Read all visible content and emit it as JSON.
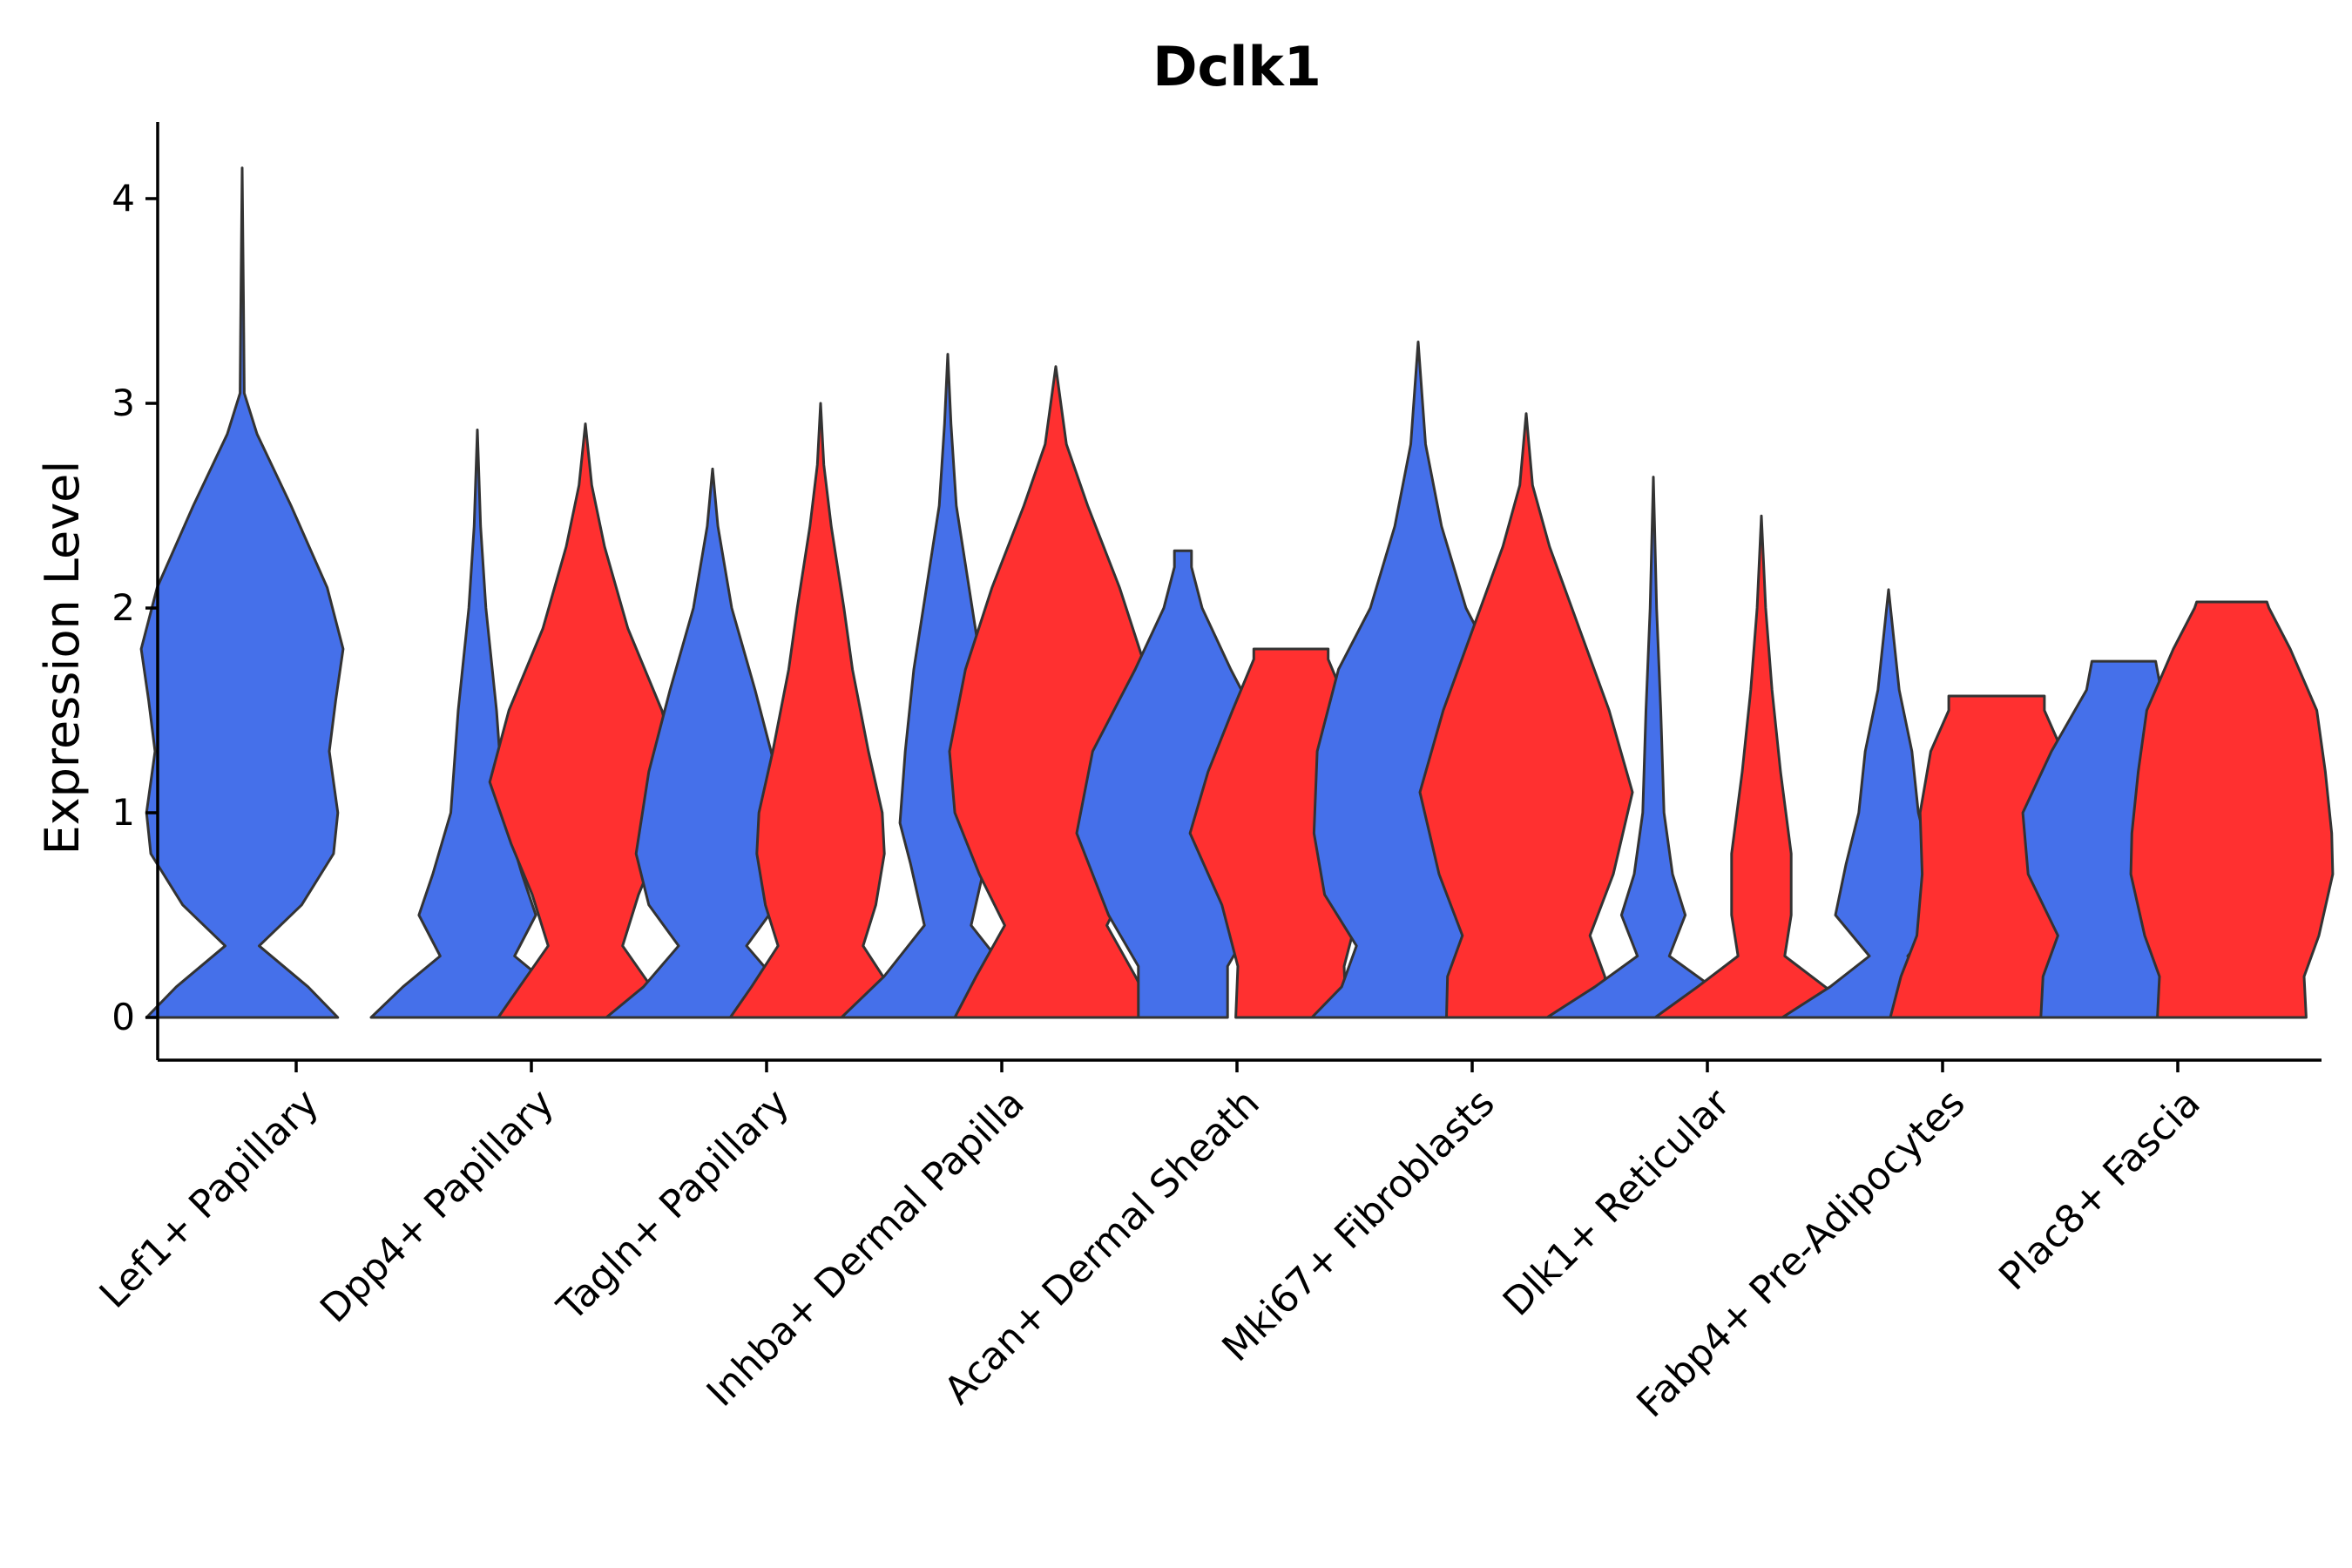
{
  "chart_data": {
    "type": "violin",
    "title": "Dclk1",
    "xlabel": "",
    "ylabel": "Expression Level",
    "ylim": [
      -0.2,
      4.35
    ],
    "yticks": [
      0,
      1,
      2,
      3,
      4
    ],
    "grid": false,
    "legend": "none",
    "categories": [
      "Lef1+ Papillary",
      "Dpp4+ Papillary",
      "Tagln+ Papillary",
      "Inhba+ Dermal Papilla",
      "Acan+ Dermal Sheath",
      "Mki67+ Fibroblasts",
      "Dlk1+ Reticular",
      "Fabp4+ Pre-Adipocytes",
      "Plac8+ Fascia"
    ],
    "groups": [
      {
        "color": "#4570EA"
      },
      {
        "color": "#FF3030"
      }
    ],
    "violins": [
      {
        "category": 0,
        "group": 0,
        "max": 4.15,
        "profile": [
          [
            0,
            0.9
          ],
          [
            0.15,
            0.62
          ],
          [
            0.35,
            0.16
          ],
          [
            0.55,
            0.56
          ],
          [
            0.8,
            0.86
          ],
          [
            1.0,
            0.9
          ],
          [
            1.3,
            0.82
          ],
          [
            1.55,
            0.88
          ],
          [
            1.8,
            0.95
          ],
          [
            2.1,
            0.8
          ],
          [
            2.5,
            0.46
          ],
          [
            2.85,
            0.14
          ],
          [
            3.05,
            0.02
          ],
          [
            3.5,
            0.012
          ],
          [
            4.15,
            0
          ]
        ]
      },
      {
        "category": 1,
        "group": 0,
        "max": 2.87,
        "profile": [
          [
            0,
            1.0
          ],
          [
            0.15,
            0.7
          ],
          [
            0.3,
            0.35
          ],
          [
            0.5,
            0.55
          ],
          [
            0.7,
            0.42
          ],
          [
            1.0,
            0.25
          ],
          [
            1.5,
            0.18
          ],
          [
            2.0,
            0.08
          ],
          [
            2.4,
            0.03
          ],
          [
            2.87,
            0
          ]
        ]
      },
      {
        "category": 1,
        "group": 1,
        "max": 2.9,
        "profile": [
          [
            0,
            0.82
          ],
          [
            0.15,
            0.62
          ],
          [
            0.35,
            0.35
          ],
          [
            0.6,
            0.5
          ],
          [
            0.85,
            0.7
          ],
          [
            1.15,
            0.9
          ],
          [
            1.5,
            0.72
          ],
          [
            1.9,
            0.4
          ],
          [
            2.3,
            0.18
          ],
          [
            2.6,
            0.06
          ],
          [
            2.9,
            0
          ]
        ]
      },
      {
        "category": 2,
        "group": 0,
        "max": 2.68,
        "profile": [
          [
            0,
            1.0
          ],
          [
            0.15,
            0.65
          ],
          [
            0.35,
            0.32
          ],
          [
            0.55,
            0.6
          ],
          [
            0.8,
            0.72
          ],
          [
            1.2,
            0.6
          ],
          [
            1.6,
            0.4
          ],
          [
            2.0,
            0.18
          ],
          [
            2.4,
            0.05
          ],
          [
            2.68,
            0
          ]
        ]
      },
      {
        "category": 2,
        "group": 1,
        "max": 3.0,
        "profile": [
          [
            0,
            0.85
          ],
          [
            0.15,
            0.65
          ],
          [
            0.35,
            0.4
          ],
          [
            0.55,
            0.52
          ],
          [
            0.8,
            0.6
          ],
          [
            1.0,
            0.58
          ],
          [
            1.3,
            0.45
          ],
          [
            1.7,
            0.3
          ],
          [
            2.0,
            0.22
          ],
          [
            2.4,
            0.1
          ],
          [
            2.7,
            0.03
          ],
          [
            3.0,
            0
          ]
        ]
      },
      {
        "category": 3,
        "group": 0,
        "max": 3.24,
        "profile": [
          [
            0,
            1.0
          ],
          [
            0.2,
            0.6
          ],
          [
            0.45,
            0.22
          ],
          [
            0.75,
            0.35
          ],
          [
            0.95,
            0.45
          ],
          [
            1.3,
            0.4
          ],
          [
            1.7,
            0.32
          ],
          [
            2.1,
            0.2
          ],
          [
            2.5,
            0.08
          ],
          [
            2.9,
            0.03
          ],
          [
            3.24,
            0
          ]
        ]
      },
      {
        "category": 3,
        "group": 1,
        "max": 3.18,
        "profile": [
          [
            0,
            0.95
          ],
          [
            0.2,
            0.75
          ],
          [
            0.45,
            0.48
          ],
          [
            0.7,
            0.72
          ],
          [
            1.0,
            0.95
          ],
          [
            1.3,
            1.0
          ],
          [
            1.7,
            0.85
          ],
          [
            2.1,
            0.6
          ],
          [
            2.5,
            0.3
          ],
          [
            2.8,
            0.1
          ],
          [
            3.18,
            0
          ]
        ]
      },
      {
        "category": 4,
        "group": 0,
        "max": 2.28,
        "profile": [
          [
            0,
            0.42
          ],
          [
            0.25,
            0.42
          ],
          [
            0.5,
            0.7
          ],
          [
            0.9,
            1.0
          ],
          [
            1.3,
            0.85
          ],
          [
            1.7,
            0.45
          ],
          [
            2.0,
            0.18
          ],
          [
            2.2,
            0.08
          ],
          [
            2.28,
            0.08
          ]
        ]
      },
      {
        "category": 4,
        "group": 1,
        "max": 1.8,
        "profile": [
          [
            0,
            0.52
          ],
          [
            0.25,
            0.5
          ],
          [
            0.55,
            0.65
          ],
          [
            0.9,
            0.95
          ],
          [
            1.2,
            0.78
          ],
          [
            1.5,
            0.55
          ],
          [
            1.75,
            0.35
          ],
          [
            1.8,
            0.35
          ]
        ]
      },
      {
        "category": 5,
        "group": 0,
        "max": 3.3,
        "profile": [
          [
            0,
            1.0
          ],
          [
            0.15,
            0.72
          ],
          [
            0.35,
            0.58
          ],
          [
            0.6,
            0.88
          ],
          [
            0.9,
            0.98
          ],
          [
            1.3,
            0.95
          ],
          [
            1.7,
            0.75
          ],
          [
            2.0,
            0.45
          ],
          [
            2.4,
            0.22
          ],
          [
            2.8,
            0.07
          ],
          [
            3.3,
            0
          ]
        ]
      },
      {
        "category": 5,
        "group": 1,
        "max": 2.95,
        "profile": [
          [
            0,
            0.75
          ],
          [
            0.2,
            0.74
          ],
          [
            0.4,
            0.6
          ],
          [
            0.7,
            0.82
          ],
          [
            1.1,
            1.0
          ],
          [
            1.5,
            0.78
          ],
          [
            1.9,
            0.5
          ],
          [
            2.3,
            0.22
          ],
          [
            2.6,
            0.06
          ],
          [
            2.95,
            0
          ]
        ]
      },
      {
        "category": 6,
        "group": 0,
        "max": 2.64,
        "profile": [
          [
            0,
            1.0
          ],
          [
            0.15,
            0.55
          ],
          [
            0.3,
            0.15
          ],
          [
            0.5,
            0.3
          ],
          [
            0.7,
            0.18
          ],
          [
            1.0,
            0.1
          ],
          [
            1.5,
            0.07
          ],
          [
            2.0,
            0.03
          ],
          [
            2.64,
            0
          ]
        ]
      },
      {
        "category": 6,
        "group": 1,
        "max": 2.45,
        "profile": [
          [
            0,
            1.0
          ],
          [
            0.15,
            0.6
          ],
          [
            0.3,
            0.22
          ],
          [
            0.5,
            0.28
          ],
          [
            0.8,
            0.28
          ],
          [
            1.2,
            0.18
          ],
          [
            1.6,
            0.1
          ],
          [
            2.0,
            0.04
          ],
          [
            2.45,
            0
          ]
        ]
      },
      {
        "category": 7,
        "group": 0,
        "max": 2.09,
        "profile": [
          [
            0,
            1.0
          ],
          [
            0.15,
            0.55
          ],
          [
            0.3,
            0.18
          ],
          [
            0.5,
            0.5
          ],
          [
            0.75,
            0.4
          ],
          [
            1.0,
            0.28
          ],
          [
            1.3,
            0.22
          ],
          [
            1.6,
            0.1
          ],
          [
            2.09,
            0
          ]
        ]
      },
      {
        "category": 7,
        "group": 1,
        "max": 1.57,
        "profile": [
          [
            0,
            1.0
          ],
          [
            0.2,
            0.9
          ],
          [
            0.4,
            0.75
          ],
          [
            0.7,
            0.7
          ],
          [
            1.0,
            0.72
          ],
          [
            1.3,
            0.62
          ],
          [
            1.5,
            0.45
          ],
          [
            1.57,
            0.45
          ]
        ]
      },
      {
        "category": 8,
        "group": 0,
        "max": 1.74,
        "profile": [
          [
            0,
            0.78
          ],
          [
            0.2,
            0.76
          ],
          [
            0.4,
            0.62
          ],
          [
            0.7,
            0.9
          ],
          [
            1.0,
            0.95
          ],
          [
            1.3,
            0.68
          ],
          [
            1.6,
            0.35
          ],
          [
            1.74,
            0.3
          ]
        ]
      },
      {
        "category": 8,
        "group": 1,
        "max": 2.03,
        "profile": [
          [
            0,
            0.7
          ],
          [
            0.2,
            0.68
          ],
          [
            0.4,
            0.82
          ],
          [
            0.7,
            0.95
          ],
          [
            0.9,
            0.94
          ],
          [
            1.2,
            0.88
          ],
          [
            1.5,
            0.8
          ],
          [
            1.8,
            0.55
          ],
          [
            2.0,
            0.35
          ],
          [
            2.03,
            0.33
          ]
        ]
      }
    ]
  }
}
